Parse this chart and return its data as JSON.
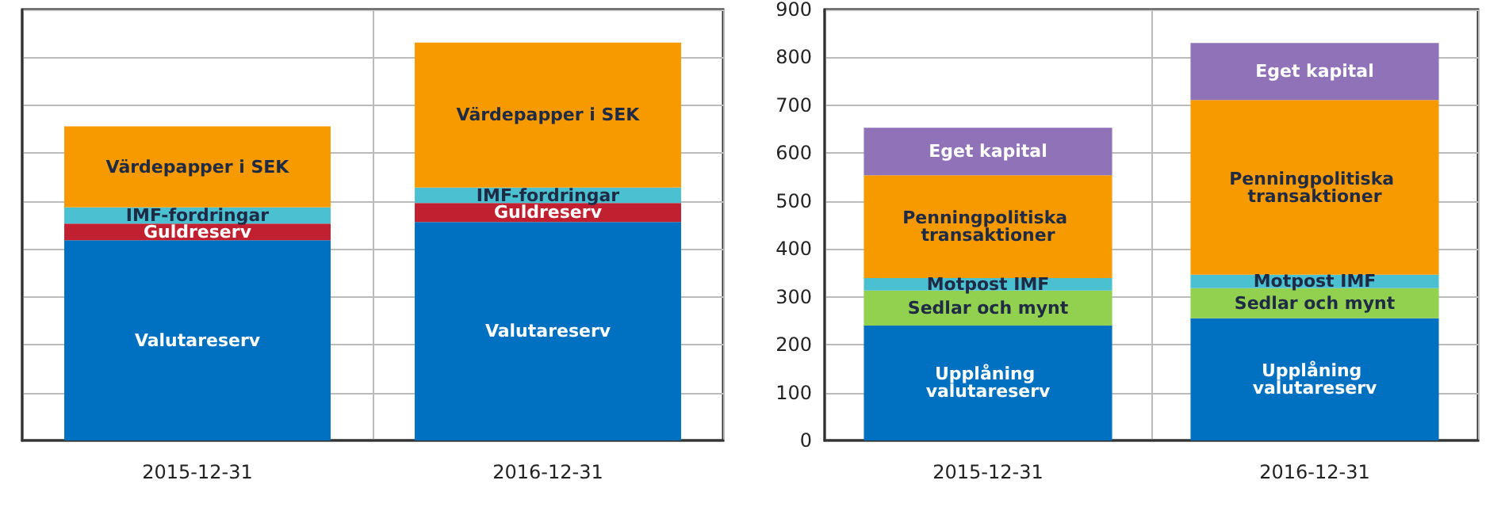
{
  "chart_data": [
    {
      "type": "bar",
      "stacked": true,
      "categories": [
        "2015-12-31",
        "2016-12-31"
      ],
      "ylim": [
        0,
        900
      ],
      "yticks": [
        0,
        100,
        200,
        300,
        400,
        500,
        600,
        700,
        800,
        900
      ],
      "tick_labels": "x",
      "grid": true,
      "series": [
        {
          "name": "Valutareserv",
          "color": "#0070c0",
          "values": [
            418,
            456
          ]
        },
        {
          "name": "Guldreserv",
          "color": "#c0202f",
          "values": [
            35,
            40
          ]
        },
        {
          "name": "IMF-fordringar",
          "color": "#4bc0d0",
          "values": [
            34,
            32
          ]
        },
        {
          "name": "Värdepapper i SEK",
          "color": "#f79a00",
          "values": [
            169,
            303
          ]
        }
      ]
    },
    {
      "type": "bar",
      "stacked": true,
      "categories": [
        "2015-12-31",
        "2016-12-31"
      ],
      "ylim": [
        0,
        900
      ],
      "yticks": [
        0,
        100,
        200,
        300,
        400,
        500,
        600,
        700,
        800,
        900
      ],
      "grid": true,
      "series": [
        {
          "name": "Upplåning valutareserv",
          "color": "#0070c0",
          "values": [
            240,
            255
          ]
        },
        {
          "name": "Sedlar och mynt",
          "color": "#92d050",
          "values": [
            73,
            63
          ]
        },
        {
          "name": "Motpost IMF",
          "color": "#4bc0d0",
          "values": [
            26,
            28
          ]
        },
        {
          "name": "Penningpolitiska transaktioner",
          "color": "#f79a00",
          "values": [
            215,
            365
          ]
        },
        {
          "name": "Eget kapital",
          "color": "#8f72b8",
          "values": [
            99,
            119
          ]
        }
      ]
    }
  ]
}
